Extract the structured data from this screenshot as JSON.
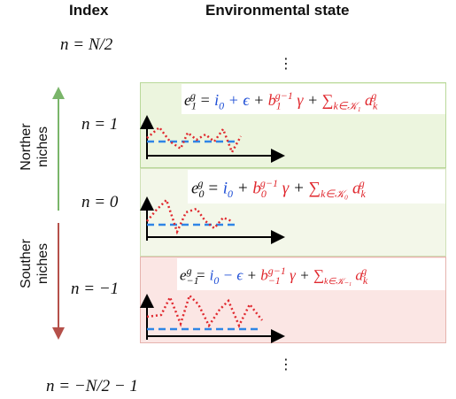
{
  "headers": {
    "index": "Index",
    "state": "Environmental state"
  },
  "index_labels": {
    "top": "n = N/2",
    "n1": "n = 1",
    "n0": "n = 0",
    "nm1": "n = −1",
    "bottom": "n = −N/2 − 1"
  },
  "side_labels": {
    "north_line1": "Norther",
    "north_line2": "niches",
    "south_line1": "Souther",
    "south_line2": "niches"
  },
  "ellipsis": "⋮",
  "equations": {
    "e1": {
      "lhs": "e",
      "lhs_sub": "1",
      "lhs_sup": "g",
      "i": "i",
      "i_sub": "0",
      "eps": "+ ϵ",
      "b": "b",
      "b_sub": "1",
      "b_sup": "g−1",
      "gamma": "γ",
      "sum": "∑",
      "sum_sub": "k∈𝒦₁",
      "a": "a",
      "a_sub": "k",
      "a_sup": "g"
    },
    "e0": {
      "lhs": "e",
      "lhs_sub": "0",
      "lhs_sup": "g",
      "i": "i",
      "i_sub": "0",
      "b": "b",
      "b_sub": "0",
      "b_sup": "g−1",
      "gamma": "γ",
      "sum": "∑",
      "sum_sub": "k∈𝒦₀",
      "a": "a",
      "a_sub": "k",
      "a_sup": "g"
    },
    "em1": {
      "lhs": "e",
      "lhs_sub": "−1",
      "lhs_sup": "g",
      "i": "i",
      "i_sub": "0",
      "eps": "− ϵ",
      "b": "b",
      "b_sub": "−1",
      "b_sup": "g−1",
      "gamma": "γ",
      "sum": "∑",
      "sum_sub": "k∈𝒦₋₁",
      "a": "a",
      "a_sub": "k",
      "a_sup": "g"
    }
  },
  "colors": {
    "north_fill": "#ecf5de",
    "north_border": "#b9d89a",
    "mid_fill": "#f3f7e9",
    "south_fill": "#fbe6e4",
    "south_border": "#e6b3ae",
    "baseline": "#2f86e6",
    "signal": "#e0282e",
    "green_arrow": "#7ab56a",
    "red_arrow": "#b5504a"
  }
}
